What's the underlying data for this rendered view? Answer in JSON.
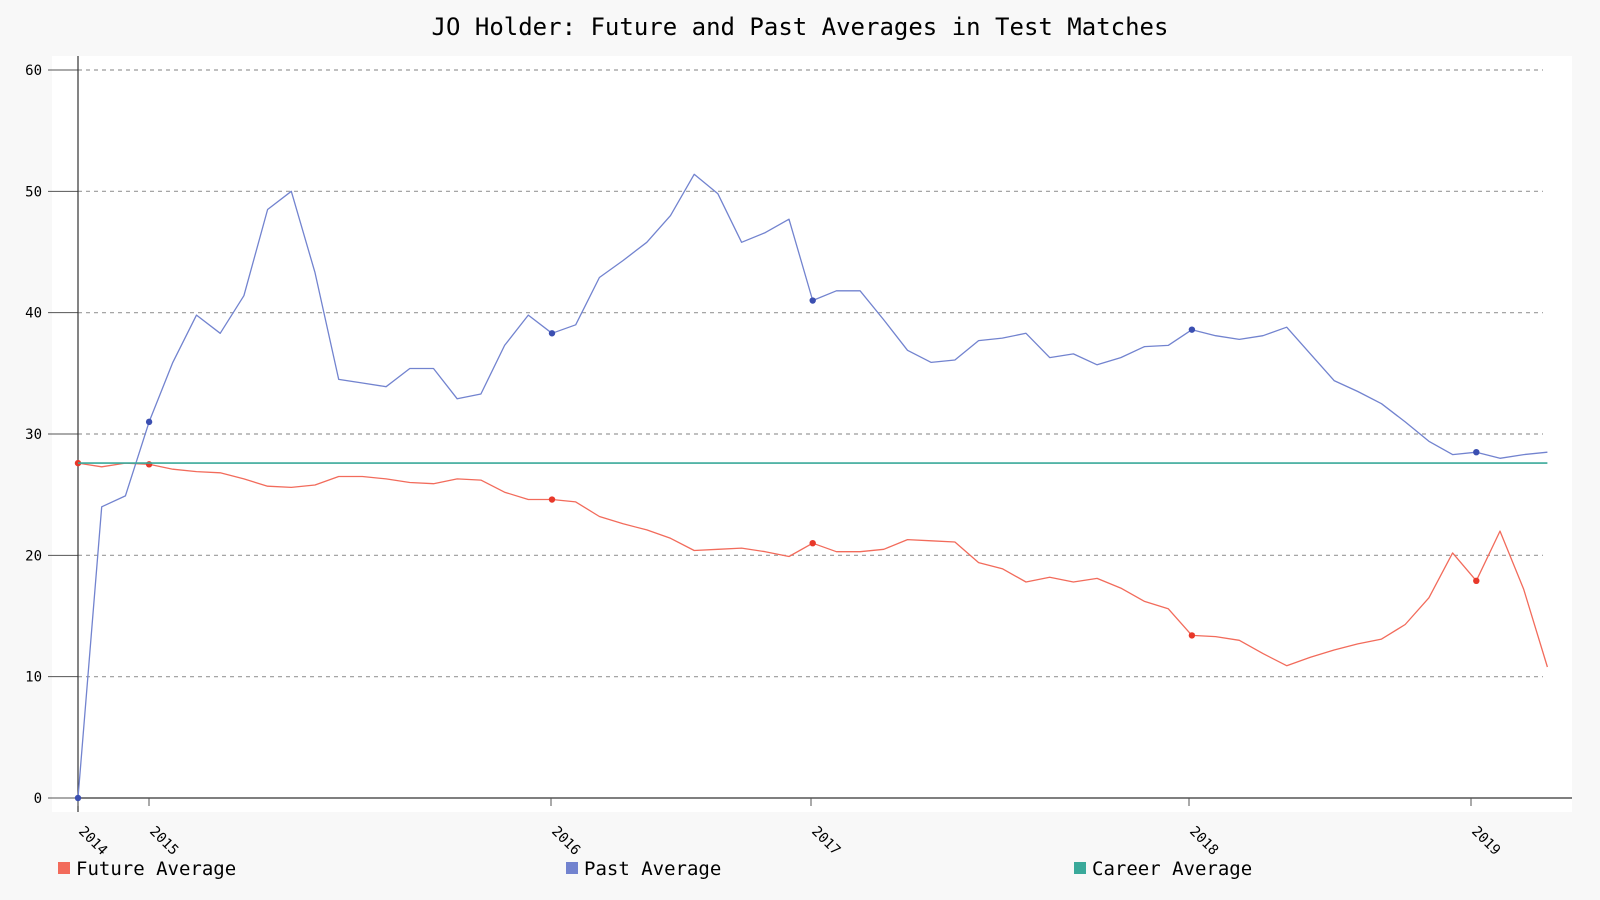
{
  "chart_data": {
    "type": "line",
    "title": "JO Holder: Future and Past Averages in Test Matches",
    "xlabel": "",
    "ylabel": "",
    "ylim": [
      0,
      60
    ],
    "y_ticks": [
      0,
      10,
      20,
      30,
      40,
      50,
      60
    ],
    "x_ticks": [
      "2014",
      "2015",
      "2016",
      "2017",
      "2018",
      "2019"
    ],
    "grid": "horizontal dashed",
    "legend_position": "bottom",
    "series": [
      {
        "name": "Future Average",
        "color": "#f26b5b",
        "marker_color": "#e8382a",
        "values": [
          27.6,
          27.3,
          27.6,
          27.5,
          27.1,
          26.9,
          26.8,
          26.3,
          25.7,
          25.6,
          25.8,
          26.5,
          26.5,
          26.3,
          26.0,
          25.9,
          26.3,
          26.2,
          25.2,
          24.6,
          24.6,
          24.4,
          23.2,
          22.6,
          22.1,
          21.4,
          20.4,
          20.5,
          20.6,
          20.3,
          19.9,
          21.0,
          20.3,
          20.3,
          20.5,
          21.3,
          21.2,
          21.1,
          19.4,
          18.9,
          17.8,
          18.2,
          17.8,
          18.1,
          17.3,
          16.2,
          15.6,
          13.4,
          13.3,
          13.0,
          11.9,
          10.9,
          11.6,
          12.2,
          12.7,
          13.1,
          14.3,
          16.5,
          20.2,
          17.9,
          22.0,
          17.2,
          10.8
        ],
        "highlighted_indices": [
          0,
          3,
          20,
          31,
          47,
          59
        ]
      },
      {
        "name": "Past Average",
        "color": "#7283cf",
        "marker_color": "#3b4fb1",
        "values": [
          0.0,
          24.0,
          24.9,
          31.0,
          35.9,
          39.8,
          38.3,
          41.4,
          48.5,
          50.0,
          43.3,
          34.5,
          34.2,
          33.9,
          35.4,
          35.4,
          32.9,
          33.3,
          37.3,
          39.8,
          38.3,
          39.0,
          42.9,
          44.3,
          45.8,
          48.0,
          51.4,
          49.8,
          45.8,
          46.6,
          47.7,
          41.0,
          41.8,
          41.8,
          39.4,
          36.9,
          35.9,
          36.1,
          37.7,
          37.9,
          38.3,
          36.3,
          36.6,
          35.7,
          36.3,
          37.2,
          37.3,
          38.6,
          38.1,
          37.8,
          38.1,
          38.8,
          36.6,
          34.4,
          33.5,
          32.5,
          31.0,
          29.4,
          28.3,
          28.5,
          28.0,
          28.3,
          28.5
        ],
        "highlighted_indices": [
          0,
          3,
          20,
          31,
          47,
          59
        ]
      },
      {
        "name": "Career Average",
        "color": "#3aa99a",
        "values": [
          27.6,
          27.6
        ]
      }
    ]
  }
}
